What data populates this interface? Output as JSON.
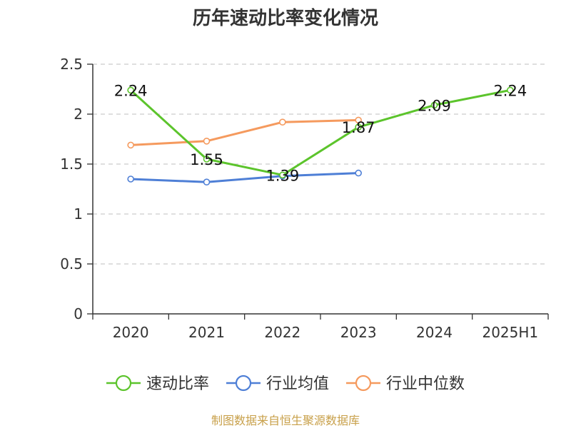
{
  "chart_data": {
    "type": "line",
    "title": "历年速动比率变化情况",
    "categories": [
      "2020",
      "2021",
      "2022",
      "2023",
      "2024",
      "2025H1"
    ],
    "ylim": [
      0,
      2.5
    ],
    "yticks": [
      "0",
      "0.5",
      "1",
      "1.5",
      "2",
      "2.5"
    ],
    "grid": true,
    "legend_position": "bottom",
    "series": [
      {
        "name": "速动比率",
        "color": "#5cc42c",
        "values": [
          2.24,
          1.55,
          1.39,
          1.87,
          2.09,
          2.24
        ],
        "labels": [
          "2.24",
          "1.55",
          "1.39",
          "1.87",
          "2.09",
          "2.24"
        ]
      },
      {
        "name": "行业均值",
        "color": "#4e7fd6",
        "values": [
          1.35,
          1.32,
          1.38,
          1.41,
          null,
          null
        ]
      },
      {
        "name": "行业中位数",
        "color": "#f59a5e",
        "values": [
          1.69,
          1.73,
          1.92,
          1.94,
          null,
          null
        ]
      }
    ],
    "source": "制图数据来自恒生聚源数据库"
  }
}
